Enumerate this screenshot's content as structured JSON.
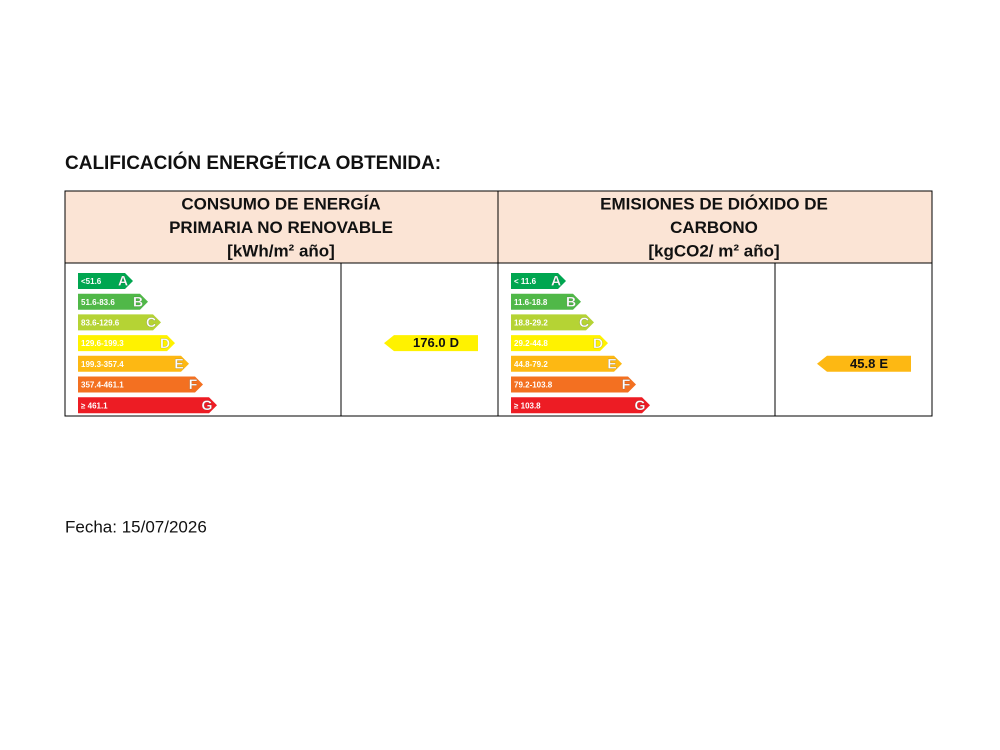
{
  "title": "CALIFICACIÓN ENERGÉTICA OBTENIDA:",
  "sections": [
    {
      "header": [
        "CONSUMO DE ENERGÍA",
        "PRIMARIA NO RENOVABLE",
        "[kWh/m² año]"
      ],
      "scale": [
        {
          "range": "<51.6",
          "letter": "A"
        },
        {
          "range": "51.6-83.6",
          "letter": "B"
        },
        {
          "range": "83.6-129.6",
          "letter": "C"
        },
        {
          "range": "129.6-199.3",
          "letter": "D"
        },
        {
          "range": "199.3-357.4",
          "letter": "E"
        },
        {
          "range": "357.4-461.1",
          "letter": "F"
        },
        {
          "range": "≥ 461.1",
          "letter": "G"
        }
      ],
      "rating": {
        "value": "176.0",
        "letter": "D"
      }
    },
    {
      "header": [
        "EMISIONES DE DIÓXIDO DE",
        "CARBONO",
        "[kgCO2/ m² año]"
      ],
      "scale": [
        {
          "range": "< 11.6",
          "letter": "A"
        },
        {
          "range": "11.6-18.8",
          "letter": "B"
        },
        {
          "range": "18.8-29.2",
          "letter": "C"
        },
        {
          "range": "29.2-44.8",
          "letter": "D"
        },
        {
          "range": "44.8-79.2",
          "letter": "E"
        },
        {
          "range": "79.2-103.8",
          "letter": "F"
        },
        {
          "range": "≥ 103.8",
          "letter": "G"
        }
      ],
      "rating": {
        "value": "45.8",
        "letter": "E"
      }
    }
  ],
  "footer": "Fecha: 15/07/2026"
}
